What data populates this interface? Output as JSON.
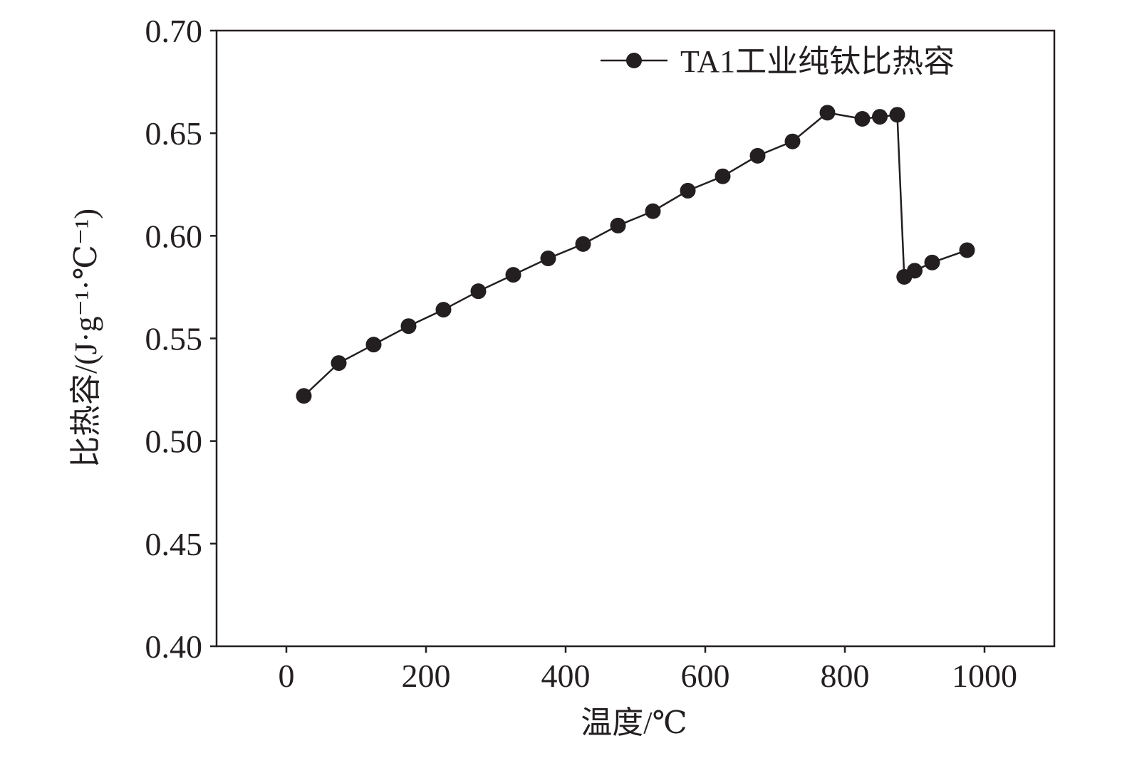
{
  "chart_data": {
    "type": "line",
    "title": "",
    "xlabel": "温度/℃",
    "ylabel": "比热容/(J·g⁻¹·℃⁻¹)",
    "xlim": [
      -100,
      1100
    ],
    "ylim": [
      0.4,
      0.7
    ],
    "xticks": [
      0,
      200,
      400,
      600,
      800,
      1000
    ],
    "xtick_labels": [
      "0",
      "200",
      "400",
      "600",
      "800",
      "1000"
    ],
    "yticks": [
      0.4,
      0.45,
      0.5,
      0.55,
      0.6,
      0.65,
      0.7
    ],
    "ytick_labels": [
      "0.40",
      "0.45",
      "0.50",
      "0.55",
      "0.60",
      "0.65",
      "0.70"
    ],
    "grid": false,
    "legend_position": "top-right",
    "series": [
      {
        "name": "TA1工业纯钛比热容",
        "color": "#231f20",
        "marker": "circle",
        "x": [
          25,
          75,
          125,
          175,
          225,
          275,
          325,
          375,
          425,
          475,
          525,
          575,
          625,
          675,
          725,
          775,
          825,
          850,
          875,
          885,
          900,
          925,
          975
        ],
        "y": [
          0.522,
          0.538,
          0.547,
          0.556,
          0.564,
          0.573,
          0.581,
          0.589,
          0.596,
          0.605,
          0.612,
          0.622,
          0.629,
          0.639,
          0.646,
          0.66,
          0.657,
          0.658,
          0.659,
          0.58,
          0.583,
          0.587,
          0.593
        ]
      }
    ]
  }
}
